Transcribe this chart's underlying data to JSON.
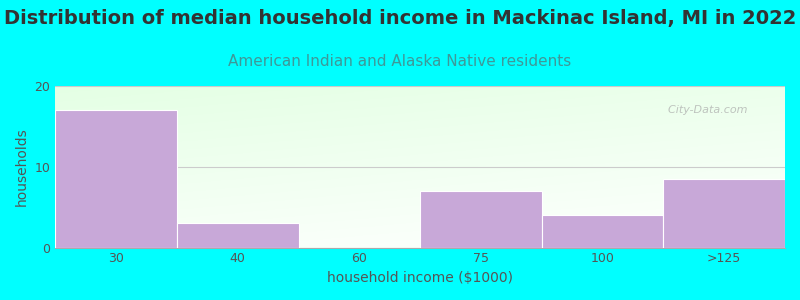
{
  "title": "Distribution of median household income in Mackinac Island, MI in 2022",
  "subtitle": "American Indian and Alaska Native residents",
  "xlabel": "household income ($1000)",
  "ylabel": "households",
  "categories": [
    "30",
    "40",
    "60",
    "75",
    "100",
    ">125"
  ],
  "values": [
    17,
    3,
    0,
    7,
    4,
    8.5
  ],
  "bar_color": "#C8A8D8",
  "bar_edgecolor": "#FFFFFF",
  "background_color": "#00FFFF",
  "ylim": [
    0,
    20
  ],
  "yticks": [
    0,
    10,
    20
  ],
  "grid_color": "#CCCCCC",
  "title_fontsize": 14,
  "title_color": "#333333",
  "subtitle_fontsize": 11,
  "subtitle_color": "#3D9999",
  "axis_label_fontsize": 10,
  "tick_fontsize": 9,
  "tick_color": "#555555",
  "watermark": "  City-Data.com"
}
